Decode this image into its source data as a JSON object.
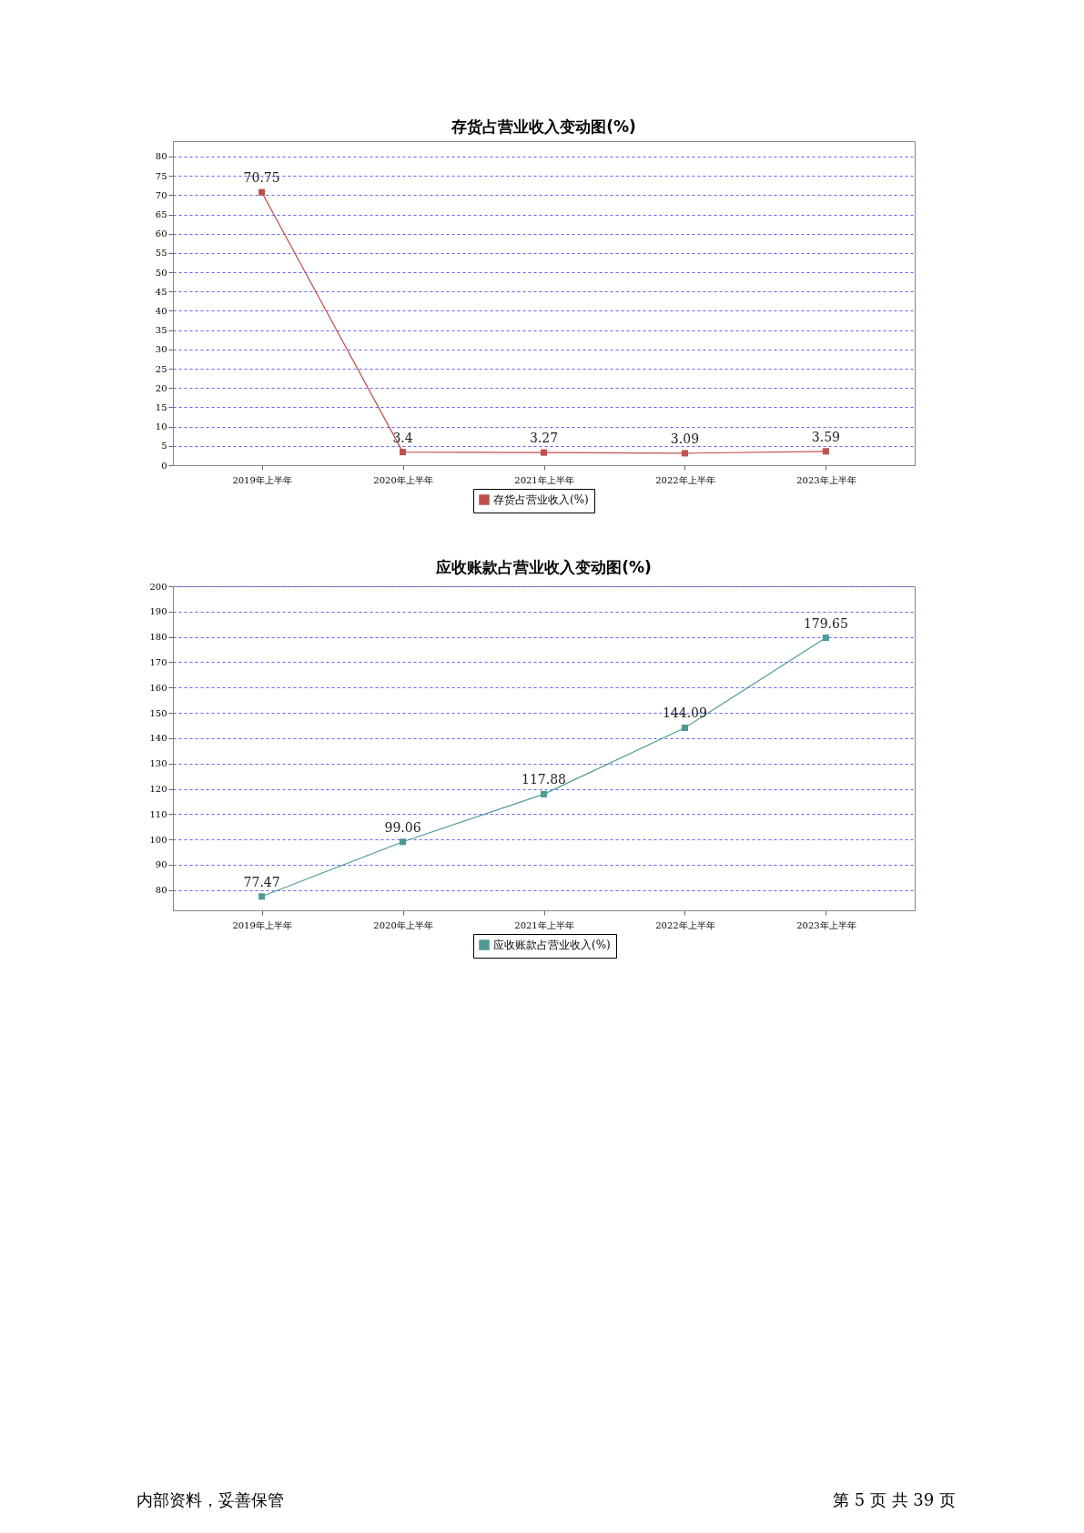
{
  "chart_data": [
    {
      "type": "line",
      "title": "存货占营业收入变动图(%)",
      "categories": [
        "2019年上半年",
        "2020年上半年",
        "2021年上半年",
        "2022年上半年",
        "2023年上半年"
      ],
      "series": [
        {
          "name": "存货占营业收入(%)",
          "color": "#c0504d",
          "values": [
            70.75,
            3.4,
            3.27,
            3.09,
            3.59
          ]
        }
      ],
      "ylim": [
        0,
        84
      ],
      "yticks": [
        0,
        5,
        10,
        15,
        20,
        25,
        30,
        35,
        40,
        45,
        50,
        55,
        60,
        65,
        70,
        75,
        80
      ],
      "grid": "y",
      "legend": "bottom",
      "marker": "square",
      "line_style": "solid",
      "data_labels": true
    },
    {
      "type": "line",
      "title": "应收账款占营业收入变动图(%)",
      "categories": [
        "2019年上半年",
        "2020年上半年",
        "2021年上半年",
        "2022年上半年",
        "2023年上半年"
      ],
      "series": [
        {
          "name": "应收账款占营业收入(%)",
          "color": "#4f9a94",
          "values": [
            77.47,
            99.06,
            117.88,
            144.09,
            179.65
          ]
        }
      ],
      "ylim": [
        72,
        200
      ],
      "yticks": [
        80,
        90,
        100,
        110,
        120,
        130,
        140,
        150,
        160,
        170,
        180,
        190,
        200
      ],
      "grid": "y",
      "legend": "bottom",
      "marker": "square",
      "line_style": "solid",
      "data_labels": true,
      "annotations": [
        "内部资料，妥善保管",
        "第 5 页  共 39 页"
      ]
    }
  ]
}
